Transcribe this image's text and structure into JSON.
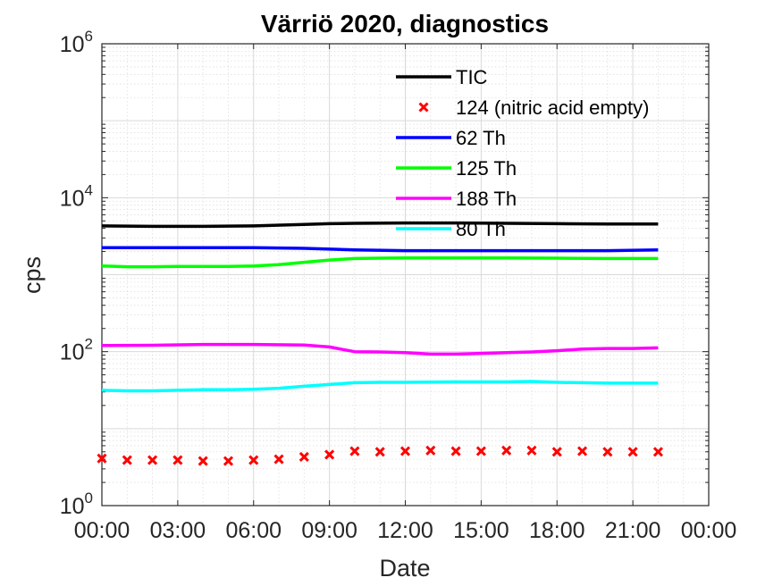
{
  "chart_data": {
    "type": "line",
    "title": "Värriö 2020, diagnostics",
    "xlabel": "Date",
    "ylabel": "cps",
    "yscale": "log",
    "ylim": [
      1,
      1000000
    ],
    "xlim": [
      "00:00",
      "24:00"
    ],
    "grid": true,
    "minor_grid": true,
    "legend_position": "top-right",
    "x_tick_labels": [
      "00:00",
      "03:00",
      "06:00",
      "09:00",
      "12:00",
      "15:00",
      "18:00",
      "21:00",
      "00:00"
    ],
    "y_ticks": [
      {
        "base": "10",
        "exp": "0",
        "value": 1
      },
      {
        "base": "10",
        "exp": "2",
        "value": 100
      },
      {
        "base": "10",
        "exp": "4",
        "value": 10000
      },
      {
        "base": "10",
        "exp": "6",
        "value": 1000000
      }
    ],
    "series": [
      {
        "name": "TIC",
        "color": "#000000",
        "style": "line",
        "x": [
          0,
          2,
          4,
          6,
          8,
          9,
          10,
          12,
          14,
          16,
          18,
          20,
          22
        ],
        "y": [
          4300,
          4250,
          4250,
          4300,
          4500,
          4600,
          4650,
          4700,
          4700,
          4650,
          4600,
          4550,
          4550
        ]
      },
      {
        "name": "124 (nitric acid empty)",
        "color": "#ff0000",
        "style": "marker-x",
        "x": [
          0,
          1,
          2,
          3,
          4,
          5,
          6,
          7,
          8,
          9,
          10,
          11,
          12,
          13,
          14,
          15,
          16,
          17,
          18,
          19,
          20,
          21,
          22
        ],
        "y": [
          4.1,
          3.9,
          3.9,
          3.9,
          3.8,
          3.8,
          3.9,
          4.0,
          4.3,
          4.6,
          5.1,
          5.0,
          5.1,
          5.2,
          5.1,
          5.1,
          5.2,
          5.2,
          5.0,
          5.1,
          5.0,
          5.0,
          5.0
        ]
      },
      {
        "name": "62 Th",
        "color": "#0000ff",
        "style": "line",
        "x": [
          0,
          2,
          4,
          6,
          8,
          10,
          12,
          14,
          16,
          18,
          20,
          22
        ],
        "y": [
          2250,
          2250,
          2250,
          2250,
          2200,
          2100,
          2050,
          2050,
          2050,
          2050,
          2050,
          2100
        ]
      },
      {
        "name": "125 Th",
        "color": "#00ff00",
        "style": "line",
        "x": [
          0,
          1,
          2,
          3,
          4,
          5,
          6,
          7,
          8,
          9,
          10,
          11,
          12,
          14,
          16,
          18,
          20,
          22
        ],
        "y": [
          1300,
          1270,
          1270,
          1280,
          1280,
          1280,
          1300,
          1350,
          1450,
          1550,
          1620,
          1640,
          1650,
          1650,
          1650,
          1640,
          1620,
          1620
        ]
      },
      {
        "name": "188 Th",
        "color": "#ff00ff",
        "style": "line",
        "x": [
          0,
          2,
          4,
          6,
          8,
          9,
          10,
          11,
          12,
          13,
          14,
          15,
          16,
          17,
          18,
          19,
          20,
          21,
          22
        ],
        "y": [
          120,
          121,
          124,
          124,
          122,
          115,
          100,
          99,
          97,
          93,
          93,
          95,
          97,
          99,
          103,
          108,
          110,
          110,
          112
        ]
      },
      {
        "name": "80 Th",
        "color": "#00ffff",
        "style": "line",
        "x": [
          0,
          1,
          2,
          3,
          4,
          5,
          6,
          7,
          8,
          9,
          10,
          11,
          12,
          14,
          16,
          17,
          18,
          20,
          22
        ],
        "y": [
          31.5,
          31,
          31,
          31.5,
          32,
          32,
          32.5,
          33.5,
          35.5,
          37.5,
          39.5,
          40,
          40,
          40.5,
          40.5,
          41,
          40,
          39,
          39
        ]
      }
    ]
  }
}
